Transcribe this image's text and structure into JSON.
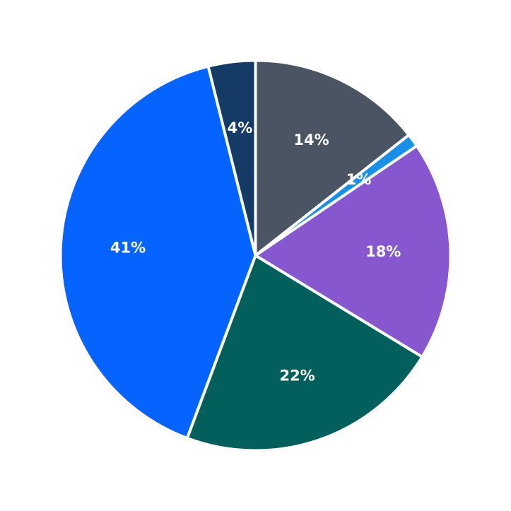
{
  "chart_data": {
    "type": "pie",
    "start": "12 o'clock",
    "direction": "clockwise",
    "title": "",
    "legend": "none",
    "slices": [
      {
        "value": 14.4,
        "label": "14%",
        "color": "#4a5463"
      },
      {
        "value": 1.1,
        "label": "1%",
        "color": "#1a8fe8"
      },
      {
        "value": 18.2,
        "label": "18%",
        "color": "#8657cf"
      },
      {
        "value": 22.0,
        "label": "22%",
        "color": "#025f5c"
      },
      {
        "value": 40.4,
        "label": "41%",
        "color": "#0563ff"
      },
      {
        "value": 3.9,
        "label": "4%",
        "color": "#143a66"
      }
    ]
  }
}
